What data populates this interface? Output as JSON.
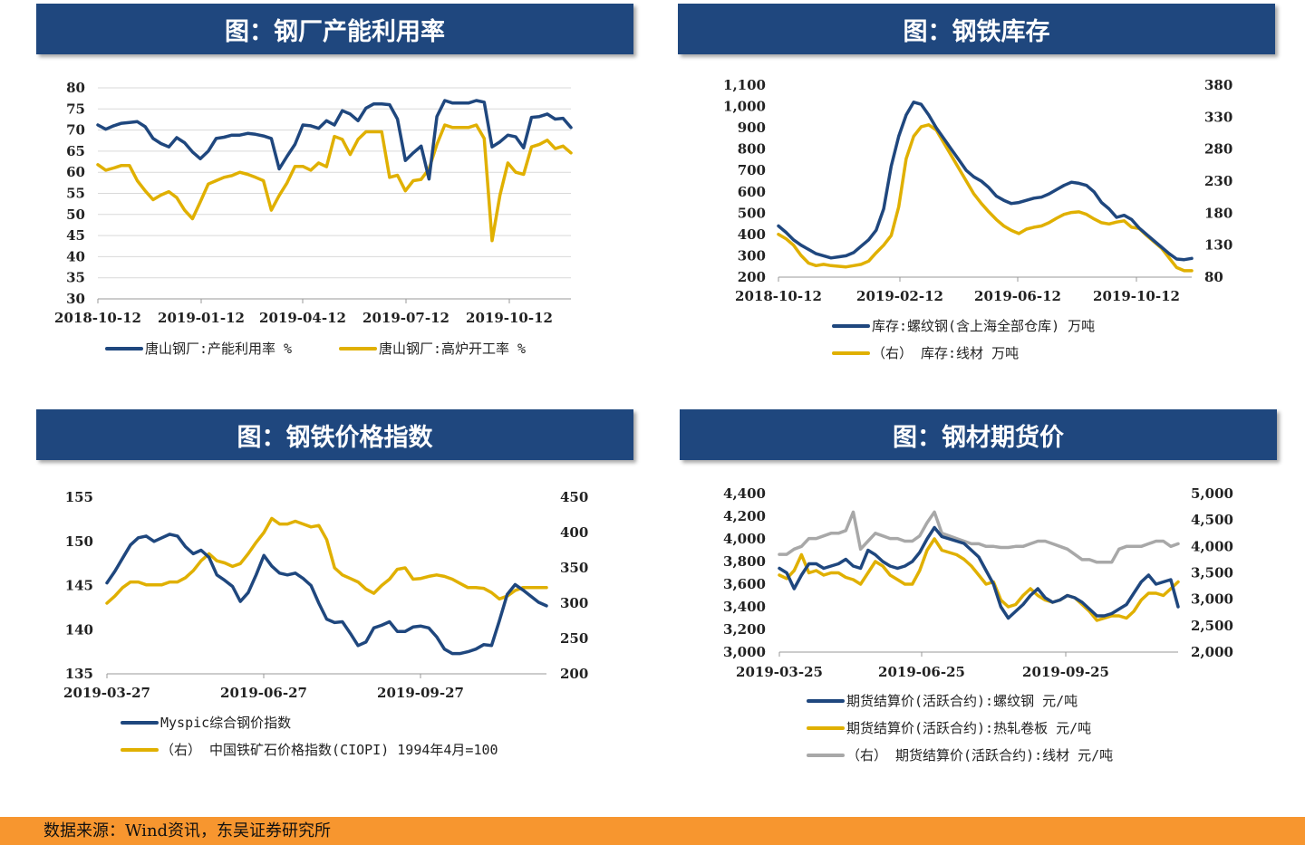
{
  "colors": {
    "navy": "#1f477e",
    "gold": "#e0b000",
    "gray": "#a8a8a8",
    "grid": "#d9d9d9"
  },
  "footer": {
    "source": "数据来源：Wind资讯，东吴证券研究所"
  },
  "chart_data": [
    {
      "id": "util",
      "title": "图：钢厂产能利用率",
      "type": "line",
      "x_ticks": [
        "2018-10-12",
        "2019-01-12",
        "2019-04-12",
        "2019-07-12",
        "2019-10-12"
      ],
      "ylim": [
        30,
        80
      ],
      "y_ticks": [
        30,
        35,
        40,
        45,
        50,
        55,
        60,
        65,
        70,
        75,
        80
      ],
      "grid": true,
      "legend_position": "bottom",
      "series": [
        {
          "name": "唐山钢厂:产能利用率 %",
          "color": "navy",
          "values": [
            71.2,
            70.2,
            71,
            71.6,
            71.8,
            72,
            70.8,
            68,
            66.8,
            66,
            68.2,
            67,
            64.8,
            63.2,
            65,
            68,
            68.3,
            68.8,
            68.8,
            69.2,
            69,
            68.6,
            68,
            60.8,
            63.8,
            66.6,
            71.2,
            71,
            70.4,
            72.2,
            71.2,
            74.6,
            73.8,
            72.2,
            75.2,
            76.2,
            76.2,
            76,
            72.6,
            62.8,
            64.6,
            66.2,
            58.4,
            73.2,
            77,
            76.4,
            76.4,
            76.4,
            77,
            76.6,
            66,
            67.2,
            68.8,
            68.4,
            65.8,
            73,
            73.2,
            73.8,
            72.6,
            72.8,
            70.6
          ]
        },
        {
          "name": "唐山钢厂:高炉开工率 %",
          "color": "gold",
          "values": [
            61.8,
            60.5,
            61,
            61.6,
            61.6,
            58,
            55.6,
            53.5,
            54.6,
            55.4,
            54,
            51,
            49,
            53,
            57.2,
            58,
            58.8,
            59.2,
            60,
            59.5,
            58.8,
            58,
            51,
            54.5,
            57.5,
            61.4,
            61.4,
            60.5,
            62.2,
            61.3,
            68.5,
            67.8,
            64.2,
            67.8,
            69.6,
            69.6,
            69.6,
            58.8,
            59.3,
            55.6,
            58,
            58.3,
            60.8,
            66.6,
            71.2,
            70.6,
            70.6,
            70.6,
            71.2,
            68,
            43.8,
            54.6,
            62.2,
            60,
            59.5,
            66,
            66.6,
            67.6,
            65.6,
            66.2,
            64.6
          ]
        }
      ]
    },
    {
      "id": "inv",
      "title": "图：钢铁库存",
      "type": "line",
      "x_ticks": [
        "2018-10-12",
        "2019-02-12",
        "2019-06-12",
        "2019-10-12"
      ],
      "ylim_left": [
        200,
        1100
      ],
      "y_ticks_left": [
        200,
        300,
        400,
        500,
        600,
        700,
        800,
        900,
        1000,
        1100
      ],
      "ylim_right": [
        80,
        380
      ],
      "y_ticks_right": [
        80,
        130,
        180,
        230,
        280,
        330,
        380
      ],
      "grid": false,
      "legend_position": "bottom",
      "series": [
        {
          "name": "库存:螺纹钢(含上海全部仓库) 万吨",
          "color": "navy",
          "axis": "left",
          "values": [
            440,
            410,
            375,
            350,
            330,
            310,
            300,
            290,
            295,
            300,
            315,
            345,
            375,
            420,
            520,
            720,
            860,
            960,
            1020,
            1010,
            960,
            900,
            850,
            800,
            750,
            700,
            670,
            650,
            620,
            580,
            560,
            545,
            550,
            560,
            570,
            575,
            590,
            610,
            630,
            645,
            640,
            630,
            600,
            550,
            520,
            480,
            490,
            470,
            430,
            400,
            370,
            340,
            310,
            285,
            282,
            288
          ]
        },
        {
          "name": "（右） 库存:线材 万吨",
          "color": "gold",
          "axis": "right",
          "values": [
            147,
            140,
            130,
            114,
            102,
            98,
            100,
            98,
            97,
            96,
            98,
            100,
            105,
            118,
            130,
            145,
            190,
            265,
            300,
            315,
            318,
            310,
            290,
            270,
            250,
            230,
            210,
            195,
            182,
            170,
            160,
            153,
            148,
            155,
            158,
            160,
            165,
            172,
            178,
            181,
            182,
            178,
            171,
            165,
            163,
            166,
            168,
            158,
            156,
            145,
            135,
            125,
            110,
            95,
            90,
            90
          ]
        }
      ]
    },
    {
      "id": "price",
      "title": "图：钢铁价格指数",
      "type": "line",
      "x_ticks": [
        "2019-03-27",
        "2019-06-27",
        "2019-09-27"
      ],
      "ylim_left": [
        135,
        155
      ],
      "y_ticks_left": [
        135,
        140,
        145,
        150,
        155
      ],
      "ylim_right": [
        200,
        450
      ],
      "y_ticks_right": [
        200,
        250,
        300,
        350,
        400,
        450
      ],
      "grid": false,
      "legend_position": "bottom",
      "series": [
        {
          "name": "Myspic综合钢价指数",
          "color": "navy",
          "axis": "left",
          "values": [
            145.3,
            146.6,
            148.1,
            149.6,
            150.4,
            150.6,
            150,
            150.4,
            150.8,
            150.6,
            149.4,
            148.6,
            149,
            148.2,
            146.2,
            145.6,
            144.9,
            143.2,
            144.2,
            146.2,
            148.4,
            147.2,
            146.4,
            146.2,
            146.4,
            145.8,
            145,
            143,
            141.2,
            140.8,
            140.9,
            139.6,
            138.2,
            138.6,
            140.2,
            140.5,
            140.9,
            139.8,
            139.8,
            140.3,
            140.4,
            140.2,
            139.2,
            137.8,
            137.3,
            137.3,
            137.5,
            137.8,
            138.3,
            138.2,
            141,
            144,
            145.1,
            144.5,
            143.8,
            143.1,
            142.7
          ]
        },
        {
          "name": "（右） 中国铁矿石价格指数(CIOPI) 1994年4月=100",
          "color": "gold",
          "axis": "right",
          "values": [
            300,
            310,
            322,
            330,
            330,
            326,
            326,
            326,
            330,
            330,
            336,
            346,
            360,
            370,
            360,
            357,
            352,
            356,
            370,
            386,
            400,
            420,
            412,
            412,
            416,
            412,
            408,
            410,
            390,
            350,
            340,
            335,
            330,
            320,
            314,
            325,
            334,
            348,
            350,
            334,
            335,
            338,
            340,
            338,
            334,
            328,
            322,
            322,
            321,
            315,
            306,
            310,
            318,
            322,
            322,
            322,
            322
          ]
        }
      ]
    },
    {
      "id": "futures",
      "title": "图：钢材期货价",
      "type": "line",
      "x_ticks": [
        "2019-03-25",
        "2019-06-25",
        "2019-09-25"
      ],
      "ylim_left": [
        3000,
        4400
      ],
      "y_ticks_left": [
        3000,
        3200,
        3400,
        3600,
        3800,
        4000,
        4200,
        4400
      ],
      "ylim_right": [
        2000,
        5000
      ],
      "y_ticks_right": [
        2000,
        2500,
        3000,
        3500,
        4000,
        4500,
        5000
      ],
      "grid": false,
      "legend_position": "bottom",
      "series": [
        {
          "name": "期货结算价(活跃合约):螺纹钢 元/吨",
          "color": "navy",
          "axis": "left",
          "values": [
            3740,
            3700,
            3560,
            3680,
            3780,
            3780,
            3740,
            3760,
            3780,
            3820,
            3760,
            3740,
            3900,
            3860,
            3800,
            3760,
            3740,
            3760,
            3800,
            3880,
            4000,
            4100,
            4020,
            4000,
            3980,
            3960,
            3900,
            3840,
            3720,
            3600,
            3400,
            3300,
            3360,
            3420,
            3500,
            3560,
            3480,
            3440,
            3460,
            3500,
            3480,
            3440,
            3380,
            3320,
            3320,
            3340,
            3380,
            3420,
            3520,
            3620,
            3680,
            3600,
            3620,
            3640,
            3400
          ]
        },
        {
          "name": "期货结算价(活跃合约):热轧卷板 元/吨",
          "color": "gold",
          "axis": "left",
          "values": [
            3680,
            3650,
            3720,
            3860,
            3700,
            3720,
            3680,
            3700,
            3700,
            3660,
            3640,
            3600,
            3700,
            3800,
            3760,
            3680,
            3640,
            3600,
            3600,
            3720,
            3900,
            4000,
            3900,
            3880,
            3860,
            3820,
            3760,
            3680,
            3600,
            3620,
            3460,
            3400,
            3420,
            3500,
            3560,
            3500,
            3460,
            3440,
            3460,
            3500,
            3480,
            3420,
            3360,
            3280,
            3300,
            3320,
            3320,
            3300,
            3360,
            3460,
            3520,
            3520,
            3500,
            3560,
            3620
          ]
        },
        {
          "name": "（右） 期货结算价(活跃合约):线材 元/吨",
          "color": "gray",
          "axis": "right",
          "values": [
            3850,
            3850,
            3950,
            4000,
            4150,
            4150,
            4200,
            4250,
            4250,
            4300,
            4650,
            3950,
            4100,
            4250,
            4200,
            4150,
            4150,
            4100,
            4100,
            4200,
            4450,
            4650,
            4250,
            4200,
            4150,
            4100,
            4050,
            4050,
            4000,
            4000,
            3980,
            3980,
            4000,
            4000,
            4050,
            4100,
            4100,
            4050,
            4000,
            3950,
            3850,
            3750,
            3750,
            3700,
            3700,
            3700,
            3950,
            4000,
            4000,
            4000,
            4050,
            4100,
            4100,
            4000,
            4050
          ]
        }
      ]
    }
  ]
}
